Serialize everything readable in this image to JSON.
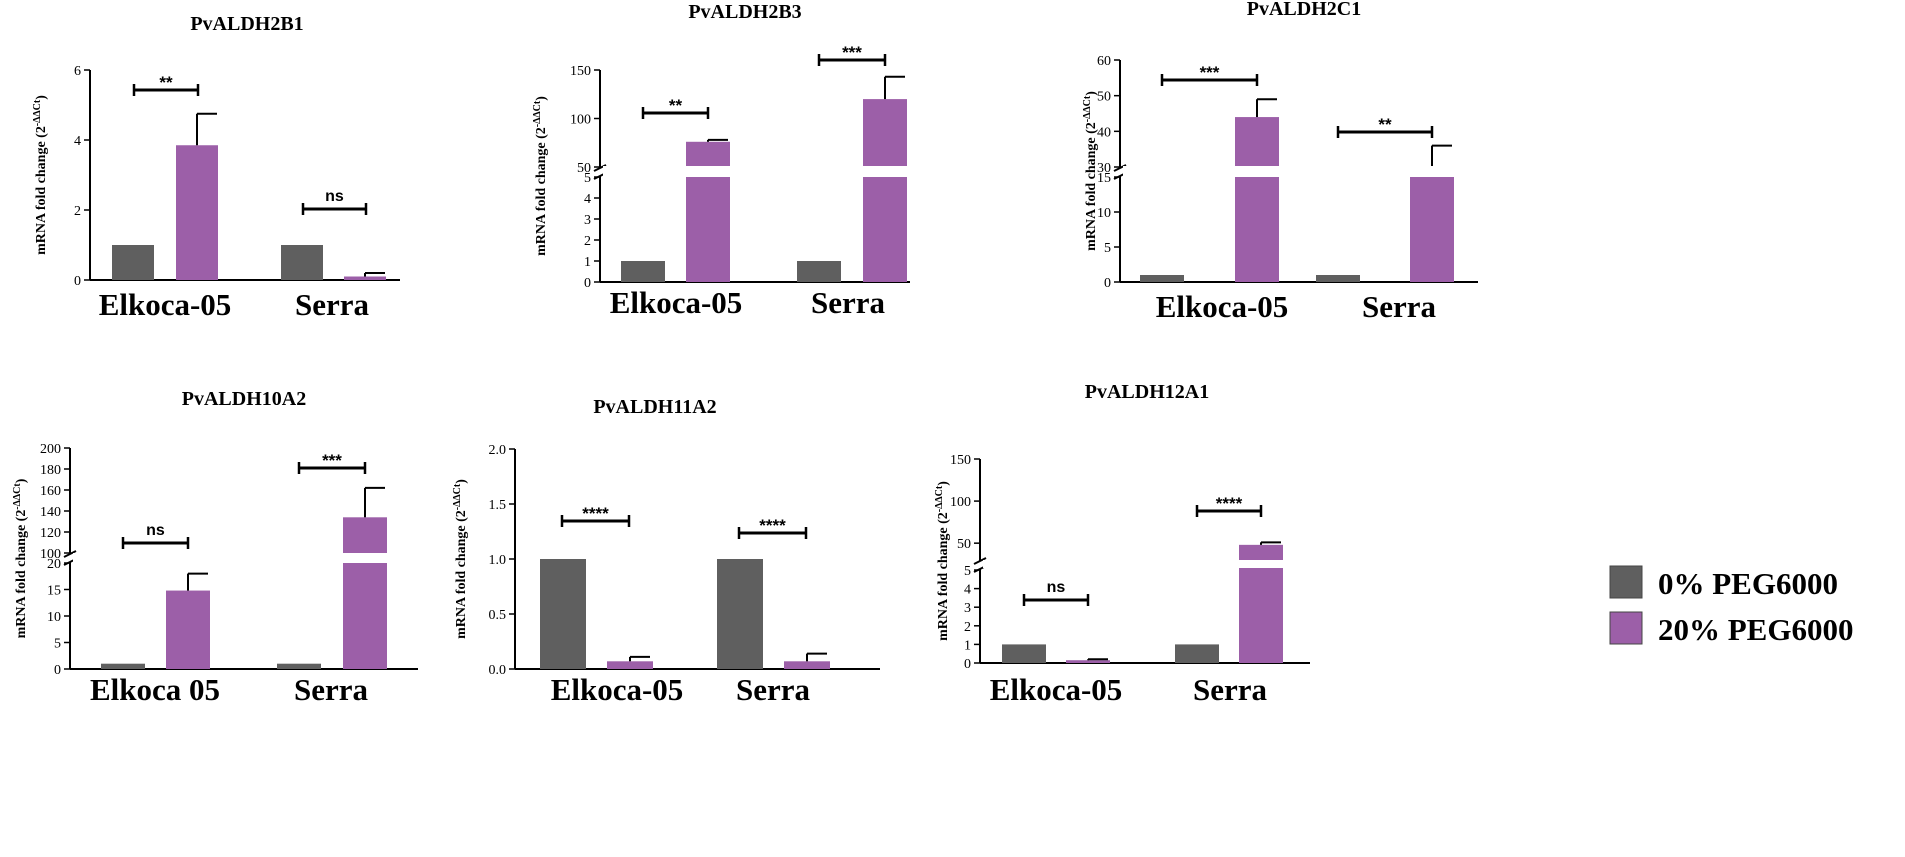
{
  "colors": {
    "control": "#5f5f5f",
    "treated": "#9c5fa8"
  },
  "legend": [
    {
      "label": "0% PEG6000",
      "color": "#5f5f5f"
    },
    {
      "label": "20% PEG6000",
      "color": "#9c5fa8"
    }
  ],
  "chart_data": [
    {
      "type": "bar",
      "title": "PvALDH2B1",
      "ylabel_main": "mRNA fold change (2",
      "ylabel_sup": "-ΔΔCt",
      "ylabel_close": ")",
      "categories": [
        "Elkoca-05",
        "Serra"
      ],
      "series": [
        {
          "name": "0% PEG6000",
          "values": [
            1.0,
            1.0
          ],
          "errors": [
            0,
            0
          ]
        },
        {
          "name": "20% PEG6000",
          "values": [
            3.85,
            0.1
          ],
          "errors": [
            0.9,
            0.1
          ]
        }
      ],
      "ylim": [
        0,
        6
      ],
      "yticks": [
        "0",
        "2",
        "4",
        "6"
      ],
      "significance": [
        "**",
        "ns"
      ]
    },
    {
      "type": "bar",
      "title": "PvALDH2B3",
      "ylabel_main": "mRNA fold change (2",
      "ylabel_sup": "-ΔΔCt",
      "ylabel_close": ")",
      "categories": [
        "Elkoca-05",
        "Serra"
      ],
      "series": [
        {
          "name": "0% PEG6000",
          "values": [
            1.0,
            1.0
          ],
          "errors": [
            0,
            0
          ]
        },
        {
          "name": "20% PEG6000",
          "values": [
            76,
            120
          ],
          "errors": [
            2,
            23
          ]
        }
      ],
      "axis_break": {
        "lower_max": 5,
        "upper_min": 50,
        "upper_max": 150
      },
      "yticks_lower": [
        "0",
        "1",
        "2",
        "3",
        "4",
        "5"
      ],
      "yticks_upper": [
        "50",
        "100",
        "150"
      ],
      "significance": [
        "**",
        "***"
      ]
    },
    {
      "type": "bar",
      "title": "PvALDH2C1",
      "ylabel_main": "mRNA fold change (2",
      "ylabel_sup": "-ΔΔCt",
      "ylabel_close": ")",
      "categories": [
        "Elkoca-05",
        "Serra"
      ],
      "series": [
        {
          "name": "0% PEG6000",
          "values": [
            1.0,
            1.0
          ],
          "errors": [
            0,
            0
          ]
        },
        {
          "name": "20% PEG6000",
          "values": [
            44,
            15
          ],
          "errors": [
            5,
            21
          ]
        }
      ],
      "axis_break": {
        "lower_max": 15,
        "upper_min": 30,
        "upper_max": 60
      },
      "yticks_lower": [
        "0",
        "5",
        "10",
        "15"
      ],
      "yticks_upper": [
        "30",
        "40",
        "50",
        "60"
      ],
      "significance": [
        "***",
        "**"
      ]
    },
    {
      "type": "bar",
      "title": "PvALDH10A2",
      "ylabel_main": "mRNA fold change (2",
      "ylabel_sup": "-ΔΔCt",
      "ylabel_close": ")",
      "categories": [
        "Elkoca 05",
        "Serra"
      ],
      "series": [
        {
          "name": "0% PEG6000",
          "values": [
            1.0,
            1.0
          ],
          "errors": [
            0,
            0
          ]
        },
        {
          "name": "20% PEG6000",
          "values": [
            14.8,
            134
          ],
          "errors": [
            3.2,
            28
          ]
        }
      ],
      "axis_break": {
        "lower_max": 20,
        "upper_min": 100,
        "upper_max": 200
      },
      "yticks_lower": [
        "0",
        "5",
        "10",
        "15",
        "20"
      ],
      "yticks_upper": [
        "100",
        "120",
        "140",
        "160",
        "180",
        "200"
      ],
      "significance": [
        "ns",
        "***"
      ]
    },
    {
      "type": "bar",
      "title": "PvALDH11A2",
      "ylabel_main": "mRNA fold change (2",
      "ylabel_sup": "-ΔΔCt",
      "ylabel_close": ")",
      "categories": [
        "Elkoca-05",
        "Serra"
      ],
      "series": [
        {
          "name": "0% PEG6000",
          "values": [
            1.0,
            1.0
          ],
          "errors": [
            0,
            0
          ]
        },
        {
          "name": "20% PEG6000",
          "values": [
            0.07,
            0.07
          ],
          "errors": [
            0.04,
            0.07
          ]
        }
      ],
      "ylim": [
        0,
        2
      ],
      "yticks": [
        "0.0",
        "0.5",
        "1.0",
        "1.5",
        "2.0"
      ],
      "significance": [
        "****",
        "****"
      ]
    },
    {
      "type": "bar",
      "title": "PvALDH12A1",
      "ylabel_main": "mRNA fold change (2",
      "ylabel_sup": "-ΔΔCt",
      "ylabel_close": ")",
      "categories": [
        "Elkoca-05",
        "Serra"
      ],
      "series": [
        {
          "name": "0% PEG6000",
          "values": [
            1.0,
            1.0
          ],
          "errors": [
            0,
            0
          ]
        },
        {
          "name": "20% PEG6000",
          "values": [
            0.15,
            48
          ],
          "errors": [
            0.05,
            3
          ]
        }
      ],
      "axis_break": {
        "lower_max": 5,
        "upper_min": 30,
        "upper_max": 150
      },
      "yticks_lower": [
        "0",
        "1",
        "2",
        "3",
        "4",
        "5"
      ],
      "yticks_upper": [
        "50",
        "100",
        "150"
      ],
      "significance": [
        "ns",
        "****"
      ]
    }
  ]
}
